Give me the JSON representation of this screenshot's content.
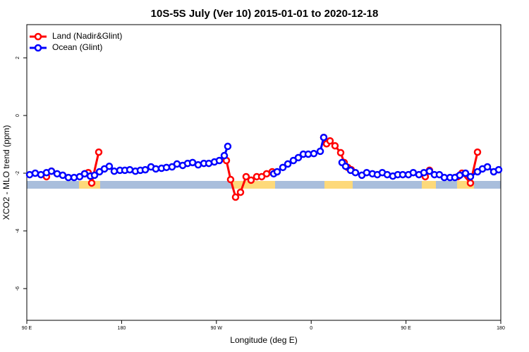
{
  "chart_data": {
    "type": "line",
    "title": "10S-5S July (Ver 10)   2015-01-01 to 2020-12-18",
    "xlabel": "Longitude (deg E)",
    "ylabel": "XCO2 - MLO trend (ppm)",
    "xlim": [
      90,
      540
    ],
    "xticks": [
      {
        "value": 90,
        "label": "90 E"
      },
      180,
      {
        "value": 270,
        "label": "90 W"
      },
      {
        "value": 360,
        "label": "0"
      },
      {
        "value": 450,
        "label": "90 E"
      },
      {
        "value": 540,
        "label": "180"
      }
    ],
    "ylim": [
      -7.1,
      3.15
    ],
    "yticks": [
      -6,
      -4,
      -2,
      0,
      2
    ],
    "legend": "top-left",
    "series": [
      {
        "name": "Land (Nadir&Glint)",
        "color": "#ff0000",
        "x": [
          108.7,
          113.4,
          130,
          144.9,
          148.3,
          151.6,
          158.3,
          220,
          279.5,
          283.5,
          288.2,
          292.9,
          298.2,
          302.9,
          308.3,
          313.0,
          317.7,
          323.0,
          350,
          371.9,
          374.6,
          377.9,
          382.6,
          388.0,
          391.3,
          394.7,
          398.0,
          430,
          468.3,
          472.3,
          485,
          499.1,
          503.1,
          511.2,
          517.9
        ],
        "values": [
          -2.12,
          -1.93,
          null,
          -2.02,
          -1.98,
          -2.34,
          -1.27,
          null,
          -1.56,
          -2.22,
          -2.83,
          -2.66,
          -2.12,
          -2.24,
          -2.12,
          -2.12,
          -2.02,
          -1.95,
          null,
          -0.76,
          -0.98,
          -0.88,
          -1.05,
          -1.29,
          -1.63,
          -1.8,
          -1.88,
          null,
          -2.12,
          -1.9,
          null,
          -2.12,
          -2.0,
          -2.34,
          -1.27
        ]
      },
      {
        "name": "Ocean (Glint)",
        "color": "#0000ff",
        "x": [
          92.7,
          98.0,
          103.4,
          108.7,
          113.4,
          118.8,
          124.1,
          129.5,
          134.9,
          140.2,
          144.9,
          150.3,
          154.3,
          159.0,
          163.7,
          168.3,
          173.0,
          178.4,
          183.1,
          187.8,
          193.1,
          197.8,
          202.5,
          207.9,
          212.5,
          217.9,
          222.6,
          227.9,
          232.6,
          238.0,
          242.7,
          247.4,
          252.7,
          258.1,
          262.8,
          268.1,
          272.8,
          277.5,
          280.8,
          300,
          324.4,
          327.7,
          333.1,
          337.8,
          343.1,
          347.8,
          352.5,
          357.2,
          362.5,
          368.6,
          371.9,
          380,
          389.3,
          392.7,
          397.4,
          402.0,
          408.1,
          412.7,
          418.1,
          422.8,
          427.5,
          432.2,
          437.5,
          442.2,
          446.9,
          452.3,
          456.9,
          462.3,
          467.0,
          472.3,
          477.0,
          481.7,
          486.4,
          491.8,
          496.4,
          501.1,
          506.5,
          511.2,
          517.9,
          522.6,
          527.3,
          533.3,
          538.0
        ],
        "values": [
          -2.05,
          -2.0,
          -2.05,
          -1.98,
          -1.93,
          -2.02,
          -2.07,
          -2.15,
          -2.15,
          -2.12,
          -2.02,
          -2.1,
          -2.07,
          -1.95,
          -1.85,
          -1.76,
          -1.93,
          -1.9,
          -1.9,
          -1.88,
          -1.93,
          -1.9,
          -1.88,
          -1.78,
          -1.85,
          -1.83,
          -1.8,
          -1.78,
          -1.68,
          -1.73,
          -1.66,
          -1.63,
          -1.71,
          -1.66,
          -1.66,
          -1.61,
          -1.56,
          -1.39,
          -1.07,
          null,
          -2.02,
          -1.95,
          -1.8,
          -1.68,
          -1.56,
          -1.46,
          -1.34,
          -1.34,
          -1.32,
          -1.24,
          -0.76,
          null,
          -1.63,
          -1.76,
          -1.9,
          -1.98,
          -2.07,
          -1.98,
          -2.02,
          -2.05,
          -1.98,
          -2.05,
          -2.1,
          -2.05,
          -2.05,
          -2.05,
          -1.98,
          -2.05,
          -1.98,
          -1.93,
          -2.05,
          -2.05,
          -2.15,
          -2.15,
          -2.15,
          -2.07,
          -2.0,
          -2.12,
          -1.95,
          -1.85,
          -1.78,
          -1.95,
          -1.88
        ]
      }
    ]
  }
}
